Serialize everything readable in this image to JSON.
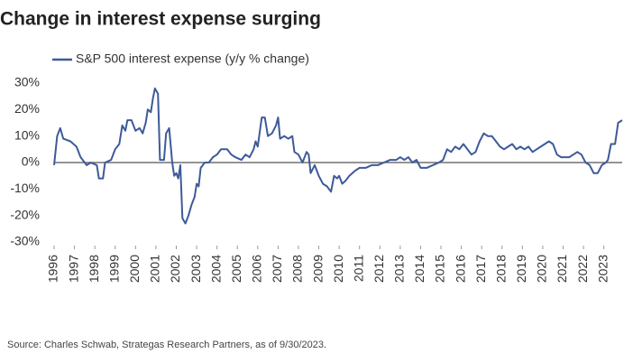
{
  "chart_data": {
    "type": "line",
    "title": "Change in interest expense surging",
    "source": "Source: Charles Schwab, Strategas Research Partners, as of 9/30/2023.",
    "x": [
      1996.0,
      1996.15,
      1996.3,
      1996.45,
      1996.8,
      1997.1,
      1997.3,
      1997.6,
      1997.8,
      1998.1,
      1998.2,
      1998.4,
      1998.5,
      1998.8,
      1999.0,
      1999.2,
      1999.35,
      1999.5,
      1999.6,
      1999.8,
      2000.0,
      2000.2,
      2000.35,
      2000.5,
      2000.6,
      2000.75,
      2000.85,
      2000.95,
      2001.1,
      2001.2,
      2001.4,
      2001.5,
      2001.65,
      2001.8,
      2001.9,
      2002.0,
      2002.1,
      2002.2,
      2002.3,
      2002.45,
      2002.6,
      2002.75,
      2002.9,
      2003.0,
      2003.1,
      2003.2,
      2003.4,
      2003.6,
      2003.8,
      2004.0,
      2004.2,
      2004.5,
      2004.7,
      2004.9,
      2005.2,
      2005.4,
      2005.6,
      2005.8,
      2005.9,
      2006.0,
      2006.2,
      2006.35,
      2006.5,
      2006.7,
      2006.9,
      2007.0,
      2007.1,
      2007.3,
      2007.5,
      2007.7,
      2007.8,
      2008.0,
      2008.2,
      2008.4,
      2008.5,
      2008.6,
      2008.8,
      2009.0,
      2009.2,
      2009.4,
      2009.6,
      2009.75,
      2009.9,
      2010.0,
      2010.15,
      2010.3,
      2010.5,
      2010.8,
      2011.0,
      2011.3,
      2011.6,
      2011.9,
      2012.2,
      2012.5,
      2012.8,
      2013.0,
      2013.2,
      2013.4,
      2013.6,
      2013.8,
      2014.0,
      2014.3,
      2014.6,
      2014.9,
      2015.1,
      2015.3,
      2015.5,
      2015.7,
      2015.9,
      2016.1,
      2016.3,
      2016.5,
      2016.7,
      2016.9,
      2017.1,
      2017.3,
      2017.5,
      2017.7,
      2017.9,
      2018.1,
      2018.3,
      2018.5,
      2018.7,
      2018.9,
      2019.1,
      2019.3,
      2019.5,
      2019.7,
      2019.9,
      2020.1,
      2020.3,
      2020.5,
      2020.7,
      2020.9,
      2021.1,
      2021.3,
      2021.5,
      2021.7,
      2021.9,
      2022.1,
      2022.3,
      2022.5,
      2022.7,
      2022.9,
      2023.1,
      2023.2,
      2023.35,
      2023.55,
      2023.7,
      2023.9
    ],
    "series": [
      {
        "name": "S&P 500 interest expense (y/y % change)",
        "color": "#3e5a99",
        "values": [
          -1,
          10,
          13,
          9,
          8,
          6,
          2,
          -1,
          0,
          -1,
          -6,
          -6,
          0,
          1,
          5,
          7,
          14,
          12,
          16,
          16,
          12,
          13,
          11,
          15,
          20,
          19,
          24,
          28,
          26,
          1,
          1,
          11,
          13,
          0,
          -5,
          -4,
          -6,
          -1,
          -21,
          -23,
          -20,
          -16,
          -13,
          -8,
          -9,
          -2,
          0,
          0,
          2,
          3,
          5,
          5,
          3,
          2,
          1,
          3,
          2,
          5,
          8,
          6,
          17,
          17,
          10,
          11,
          14,
          17,
          9,
          10,
          9,
          10,
          4,
          3,
          0,
          4,
          3,
          -4,
          -1,
          -5,
          -8,
          -9,
          -11,
          -5,
          -6,
          -5,
          -8,
          -7,
          -5,
          -3,
          -2,
          -2,
          -1,
          -1,
          0,
          1,
          1,
          2,
          1,
          2,
          0,
          1,
          -2,
          -2,
          -1,
          0,
          1,
          5,
          4,
          6,
          5,
          7,
          5,
          3,
          4,
          8,
          11,
          10,
          10,
          8,
          6,
          5,
          6,
          7,
          5,
          6,
          5,
          6,
          4,
          5,
          6,
          7,
          8,
          7,
          3,
          2,
          2,
          2,
          3,
          4,
          3,
          0,
          -1,
          -4,
          -4,
          -1,
          0,
          1,
          7,
          7,
          15,
          16
        ]
      }
    ],
    "xlim": [
      1996,
      2023.9
    ],
    "xticks": [
      1996,
      1997,
      1998,
      1999,
      2000,
      2001,
      2002,
      2003,
      2004,
      2005,
      2006,
      2007,
      2008,
      2009,
      2010,
      2011,
      2012,
      2013,
      2014,
      2015,
      2016,
      2017,
      2018,
      2019,
      2020,
      2021,
      2022,
      2023
    ],
    "ylim": [
      -30,
      30
    ],
    "yticks": [
      {
        "value": 30,
        "label": "30%"
      },
      {
        "value": 20,
        "label": "20%"
      },
      {
        "value": 10,
        "label": "10%"
      },
      {
        "value": 0,
        "label": "0%"
      },
      {
        "value": -10,
        "label": "-10%"
      },
      {
        "value": -20,
        "label": "-20%"
      },
      {
        "value": -30,
        "label": "-30%"
      }
    ],
    "zero_line": true
  }
}
